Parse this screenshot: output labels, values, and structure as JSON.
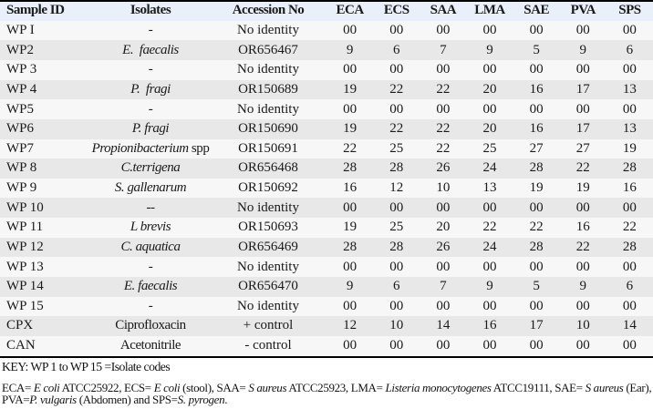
{
  "table": {
    "columns": [
      {
        "label": "Sample ID",
        "align": "left"
      },
      {
        "label": "Isolates",
        "align": "center"
      },
      {
        "label": "Accession No",
        "align": "center"
      },
      {
        "label": "ECA",
        "align": "center"
      },
      {
        "label": "ECS",
        "align": "center"
      },
      {
        "label": "SAA",
        "align": "center"
      },
      {
        "label": "LMA",
        "align": "center"
      },
      {
        "label": "SAE",
        "align": "center"
      },
      {
        "label": "PVA",
        "align": "center"
      },
      {
        "label": "SPS",
        "align": "center"
      }
    ],
    "rows": [
      {
        "sample_id": "WP I",
        "isolates": [
          {
            "t": "-",
            "i": false
          }
        ],
        "accession": "No identity",
        "values": [
          "00",
          "00",
          "00",
          "00",
          "00",
          "00",
          "00"
        ]
      },
      {
        "sample_id": "WP2",
        "isolates": [
          {
            "t": "E.  faecalis",
            "i": true
          }
        ],
        "accession": "OR656467",
        "values": [
          "9",
          "6",
          "7",
          "9",
          "5",
          "9",
          "6"
        ]
      },
      {
        "sample_id": "WP 3",
        "isolates": [
          {
            "t": "-",
            "i": false
          }
        ],
        "accession": "No identity",
        "values": [
          "00",
          "00",
          "00",
          "00",
          "00",
          "00",
          "00"
        ]
      },
      {
        "sample_id": "WP 4",
        "isolates": [
          {
            "t": "P.  fragi",
            "i": true
          }
        ],
        "accession": "OR150689",
        "values": [
          "19",
          "22",
          "22",
          "20",
          "16",
          "17",
          "13"
        ]
      },
      {
        "sample_id": "WP5",
        "isolates": [
          {
            "t": "-",
            "i": false
          }
        ],
        "accession": "No identity",
        "values": [
          "00",
          "00",
          "00",
          "00",
          "00",
          "00",
          "00"
        ]
      },
      {
        "sample_id": "WP6",
        "isolates": [
          {
            "t": "P. fragi",
            "i": true
          }
        ],
        "accession": "OR150690",
        "values": [
          "19",
          "22",
          "22",
          "20",
          "16",
          "17",
          "13"
        ]
      },
      {
        "sample_id": "WP7",
        "isolates": [
          {
            "t": "Propionibacterium",
            "i": true
          },
          {
            "t": " spp",
            "i": false
          }
        ],
        "accession": "OR150691",
        "values": [
          "22",
          "25",
          "22",
          "25",
          "27",
          "27",
          "19"
        ]
      },
      {
        "sample_id": "WP 8",
        "isolates": [
          {
            "t": "C.terrigena",
            "i": true
          }
        ],
        "accession": "OR656468",
        "values": [
          "28",
          "28",
          "26",
          "24",
          "28",
          "22",
          "28"
        ]
      },
      {
        "sample_id": "WP 9",
        "isolates": [
          {
            "t": "S. gallenarum",
            "i": true
          }
        ],
        "accession": "OR150692",
        "values": [
          "16",
          "12",
          "10",
          "13",
          "19",
          "19",
          "16"
        ]
      },
      {
        "sample_id": "WP 10",
        "isolates": [
          {
            "t": "--",
            "i": false
          }
        ],
        "accession": "No identity",
        "values": [
          "00",
          "00",
          "00",
          "00",
          "00",
          "00",
          "00"
        ]
      },
      {
        "sample_id": "WP 11",
        "isolates": [
          {
            "t": "L brevis",
            "i": true
          }
        ],
        "accession": "OR150693",
        "values": [
          "19",
          "25",
          "20",
          "22",
          "22",
          "16",
          "22"
        ]
      },
      {
        "sample_id": "WP 12",
        "isolates": [
          {
            "t": "C. aquatica",
            "i": true
          }
        ],
        "accession": "OR656469",
        "values": [
          "28",
          "28",
          "26",
          "24",
          "28",
          "22",
          "28"
        ]
      },
      {
        "sample_id": "WP 13",
        "isolates": [
          {
            "t": "-",
            "i": false
          }
        ],
        "accession": "No identity",
        "values": [
          "00",
          "00",
          "00",
          "00",
          "00",
          "00",
          "00"
        ]
      },
      {
        "sample_id": "WP 14",
        "isolates": [
          {
            "t": "E. faecalis",
            "i": true
          }
        ],
        "accession": "OR656470",
        "values": [
          "9",
          "6",
          "7",
          "9",
          "5",
          "9",
          "6"
        ]
      },
      {
        "sample_id": "WP 15",
        "isolates": [
          {
            "t": "-",
            "i": false
          }
        ],
        "accession": "No identity",
        "values": [
          "00",
          "00",
          "00",
          "00",
          "00",
          "00",
          "00"
        ]
      },
      {
        "sample_id": "CPX",
        "isolates": [
          {
            "t": "Ciprofloxacin",
            "i": false
          }
        ],
        "accession": "+ control",
        "values": [
          "12",
          "10",
          "14",
          "16",
          "17",
          "10",
          "14"
        ]
      },
      {
        "sample_id": "CAN",
        "isolates": [
          {
            "t": "Acetonitrile",
            "i": false
          }
        ],
        "accession": "- control",
        "values": [
          "00",
          "00",
          "00",
          "00",
          "00",
          "00",
          "00"
        ]
      }
    ]
  },
  "footnotes": {
    "key_line": "KEY: WP 1 to WP 15 =Isolate codes",
    "line1_segments": [
      {
        "t": "ECA= ",
        "i": false
      },
      {
        "t": "E coli",
        "i": true
      },
      {
        "t": " ATCC25922, ECS= ",
        "i": false
      },
      {
        "t": "E coli",
        "i": true
      },
      {
        "t": " (stool), SAA= ",
        "i": false
      },
      {
        "t": "S aureus",
        "i": true
      },
      {
        "t": " ATCC25923, LMA= ",
        "i": false
      },
      {
        "t": "Listeria monocytogenes",
        "i": true
      },
      {
        "t": " ATCC19111, SAE= ",
        "i": false
      },
      {
        "t": "S aureus",
        "i": true
      },
      {
        "t": " (Ear),",
        "i": false
      }
    ],
    "line2_segments": [
      {
        "t": "PVA=",
        "i": false
      },
      {
        "t": "P. vulgaris",
        "i": true
      },
      {
        "t": " (Abdomen) and SPS=",
        "i": false
      },
      {
        "t": "S. pyrogen",
        "i": true
      },
      {
        "t": ".",
        "i": false
      }
    ]
  },
  "colors": {
    "header_bg": "#e9f0f9",
    "row_odd_bg": "#f7f7f8",
    "row_even_bg": "#e8e8e9",
    "rule": "#000000",
    "text": "#1a1a1a"
  }
}
